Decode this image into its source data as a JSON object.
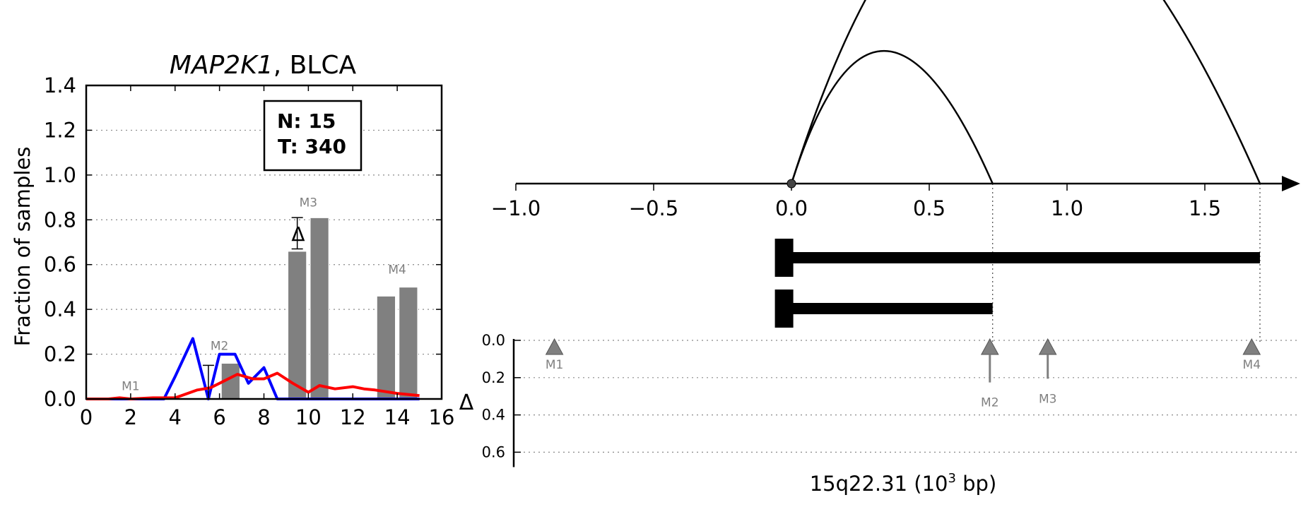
{
  "left_panel": {
    "title_italic": "MAP2K1",
    "title_rest": ", BLCA",
    "ylabel": "Fraction of samples",
    "counts": {
      "normal": "N: 15",
      "tumor": "T: 340"
    },
    "delta_symbol": "Δ"
  },
  "right_panel": {
    "xlabel_prefix": "15q22.31 (10",
    "xlabel_exp": "3",
    "xlabel_suffix": " bp)",
    "delta_axis_label": "Δ"
  },
  "colors": {
    "bar": "#808080",
    "normal_line": "#0000ff",
    "tumor_line": "#ff0000",
    "marker": "#808080"
  },
  "chart_data": [
    {
      "type": "bar",
      "xlim": [
        0,
        16
      ],
      "ylim": [
        0,
        1.4
      ],
      "xticks": [
        0,
        2,
        4,
        6,
        8,
        10,
        12,
        14,
        16
      ],
      "yticks": [
        0.0,
        0.2,
        0.4,
        0.6,
        0.8,
        1.0,
        1.2,
        1.4
      ],
      "grid": true,
      "bars": [
        {
          "x": 6.5,
          "value": 0.16
        },
        {
          "x": 9.5,
          "value": 0.66
        },
        {
          "x": 10.5,
          "value": 0.81
        },
        {
          "x": 13.5,
          "value": 0.46
        },
        {
          "x": 14.5,
          "value": 0.5
        }
      ],
      "bar_width": 0.85,
      "error_bars": [
        {
          "x": 5.5,
          "low": 0.0,
          "high": 0.15
        },
        {
          "x": 9.5,
          "low": 0.67,
          "high": 0.81
        }
      ],
      "bar_labels": [
        {
          "text": "M1",
          "x": 2,
          "y": 0.03
        },
        {
          "text": "M2",
          "x": 6,
          "y": 0.21
        },
        {
          "text": "M3",
          "x": 10,
          "y": 0.85
        },
        {
          "text": "M4",
          "x": 14,
          "y": 0.55
        }
      ],
      "series": [
        {
          "name": "N",
          "x": [
            0,
            1,
            2,
            3,
            3.5,
            4,
            4.8,
            5.5,
            6,
            6.7,
            7.3,
            8,
            8.6,
            9,
            10,
            11,
            12,
            13,
            14,
            15
          ],
          "values": [
            0,
            0,
            0,
            0,
            0,
            0.1,
            0.27,
            0,
            0.2,
            0.2,
            0.07,
            0.14,
            0,
            0,
            0,
            0,
            0,
            0,
            0,
            0
          ]
        },
        {
          "name": "T",
          "x": [
            0,
            1,
            1.5,
            2,
            3,
            4,
            5,
            5.6,
            6,
            6.8,
            7.5,
            8,
            8.6,
            9.3,
            10,
            10.5,
            11.2,
            12,
            12.5,
            13,
            14,
            15
          ],
          "values": [
            0,
            0,
            0.005,
            0,
            0.005,
            0.005,
            0.04,
            0.05,
            0.07,
            0.11,
            0.09,
            0.09,
            0.115,
            0.07,
            0.03,
            0.06,
            0.045,
            0.055,
            0.045,
            0.04,
            0.025,
            0.015
          ]
        }
      ],
      "count_labels": [
        "N: 15",
        "T: 340"
      ]
    },
    {
      "type": "line",
      "xlim": [
        -1.0,
        1.75
      ],
      "xticks": [
        -1.0,
        -0.5,
        0.0,
        0.5,
        1.0,
        1.5
      ],
      "xtick_labels": [
        "−1.0",
        "−0.5",
        "0.0",
        "0.5",
        "1.0",
        "1.5"
      ],
      "origin_point": 0.0,
      "arcs": [
        {
          "from": 0.0,
          "to": 0.73
        },
        {
          "from": 0.0,
          "to": 1.7
        }
      ],
      "gene_bars": [
        {
          "start": -0.06,
          "end": 1.7
        },
        {
          "start": -0.06,
          "end": 0.73
        }
      ],
      "guide_lines": [
        0.73,
        1.7
      ]
    },
    {
      "type": "scatter",
      "xlabel": "15q22.31 (10^3 bp)",
      "ylabel": "Δ",
      "ylim": [
        0.0,
        0.68
      ],
      "yticks": [
        0.0,
        0.2,
        0.4,
        0.6
      ],
      "ytick_labels": [
        "0.0",
        "0.2",
        "0.4",
        "0.6"
      ],
      "grid": true,
      "markers": [
        {
          "label": "M1",
          "x": -0.86,
          "delta": 0.0
        },
        {
          "label": "M2",
          "x": 0.72,
          "delta": 0.15
        },
        {
          "label": "M3",
          "x": 0.93,
          "delta": 0.13
        },
        {
          "label": "M4",
          "x": 1.67,
          "delta": 0.0
        }
      ]
    }
  ]
}
